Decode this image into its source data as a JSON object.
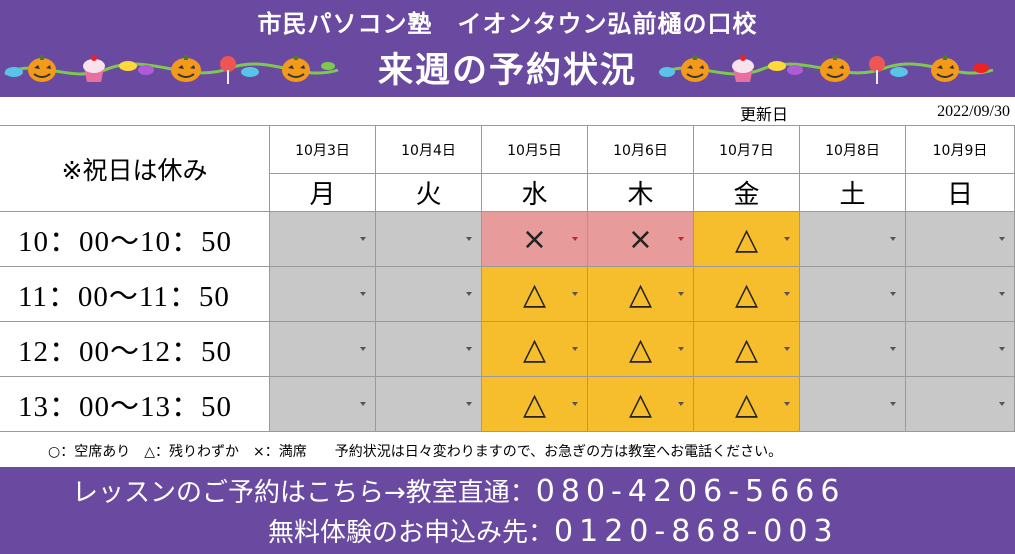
{
  "header": {
    "school_name": "市民パソコン塾　イオンタウン弘前樋の口校",
    "title": "来週の予約状況"
  },
  "updated": {
    "label": "更新日",
    "date": "2022/09/30"
  },
  "table": {
    "holiday_note": "※祝日は休み",
    "days": [
      {
        "date": "10月3日",
        "day": "月"
      },
      {
        "date": "10月4日",
        "day": "火"
      },
      {
        "date": "10月5日",
        "day": "水"
      },
      {
        "date": "10月6日",
        "day": "木"
      },
      {
        "date": "10月7日",
        "day": "金"
      },
      {
        "date": "10月8日",
        "day": "土"
      },
      {
        "date": "10月9日",
        "day": "日"
      }
    ],
    "slots": [
      {
        "time": "10：00〜10：50",
        "status": [
          "",
          "",
          "×",
          "×",
          "△",
          "",
          ""
        ]
      },
      {
        "time": "11：00〜11：50",
        "status": [
          "",
          "",
          "△",
          "△",
          "△",
          "",
          ""
        ]
      },
      {
        "time": "12：00〜12：50",
        "status": [
          "",
          "",
          "△",
          "△",
          "△",
          "",
          ""
        ]
      },
      {
        "time": "13：00〜13：50",
        "status": [
          "",
          "",
          "△",
          "△",
          "△",
          "",
          ""
        ]
      }
    ],
    "colors": {
      "closed": "#c8c8c8",
      "few": "#f6be2c",
      "full": "#e89b9b",
      "header": "#ffffff"
    }
  },
  "legend": "○：空席あり　△：残りわずか　×：満席　　予約状況は日々変わりますので、お急ぎの方は教室へお電話ください。",
  "footer": {
    "lesson_label": "レッスンのご予約はこちら→教室直通：",
    "lesson_phone": "080-4206-5666",
    "trial_label": "無料体験のお申込み先：",
    "trial_phone": "0120-868-003"
  },
  "decorations": [
    "pumpkin-icon",
    "cupcake-icon",
    "candy-icon",
    "lollipop-icon"
  ]
}
